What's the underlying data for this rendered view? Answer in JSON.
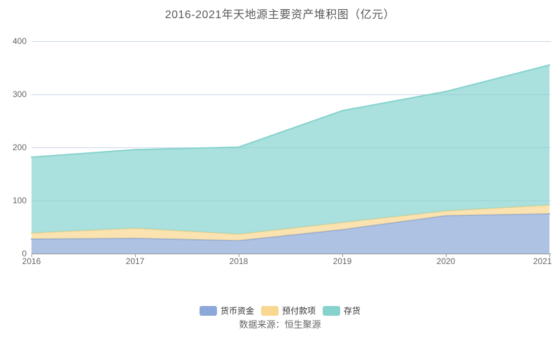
{
  "title": "2016-2021年天地源主要资产堆积图（亿元）",
  "source": "数据来源：恒生聚源",
  "chart_data": {
    "type": "area",
    "stacked": true,
    "title": "2016-2021年天地源主要资产堆积图（亿元）",
    "x": [
      "2016",
      "2017",
      "2018",
      "2019",
      "2020",
      "2021"
    ],
    "series": [
      {
        "id": "monetary-funds",
        "name": "货币资金",
        "color": "#8CA8D8",
        "values": [
          27.6,
          29.0,
          24.5,
          45.2,
          71.6,
          75.0
        ]
      },
      {
        "id": "prepayments",
        "name": "预付款项",
        "color": "#F8D790",
        "values": [
          11.1,
          18.6,
          12.0,
          13.2,
          8.7,
          16.3
        ]
      },
      {
        "id": "inventory",
        "name": "存货",
        "color": "#86D3CE",
        "values": [
          142.9,
          148.2,
          164.0,
          210.8,
          224.9,
          264.0
        ]
      }
    ],
    "stack_totals": [
      181.6,
      195.8,
      200.5,
      269.2,
      305.2,
      355.3
    ],
    "ylim": [
      0,
      400
    ],
    "yticks": [
      0,
      100,
      200,
      300,
      400
    ],
    "grid": true,
    "grid_color": "#ccd5ea",
    "axis_color": "#999999",
    "area_opacity": 0.7,
    "legend_position": "bottom",
    "xlabel": "",
    "ylabel": ""
  }
}
